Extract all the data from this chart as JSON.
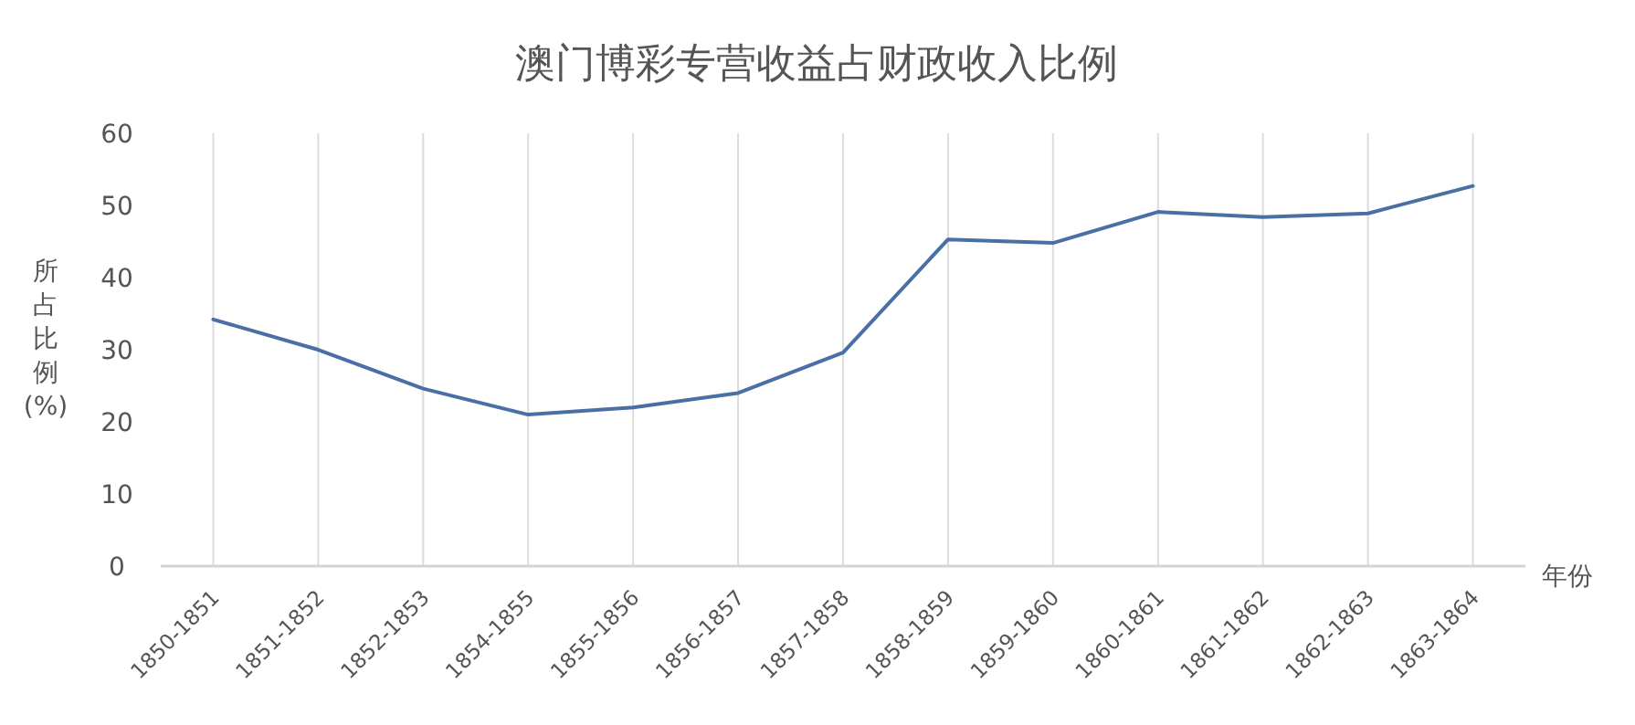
{
  "chart_data": {
    "type": "line",
    "title": "澳门博彩专营收益占财政收入比例",
    "xlabel": "年份",
    "ylabel": "所占比例(%)",
    "categories": [
      "1850-1851",
      "1851-1852",
      "1852-1853",
      "1854-1855",
      "1855-1856",
      "1856-1857",
      "1857-1858",
      "1858-1859",
      "1859-1860",
      "1860-1861",
      "1861-1862",
      "1862-1863",
      "1863-1864"
    ],
    "series": [
      {
        "color": "#4a6fa5",
        "values": [
          34.2,
          30,
          24.6,
          21,
          22,
          24,
          29.6,
          45.3,
          44.8,
          49.1,
          48.4,
          48.9,
          52.7
        ]
      }
    ],
    "ylim": [
      0,
      60
    ],
    "yticks": [
      0,
      10,
      20,
      30,
      40,
      50,
      60
    ],
    "grid": "x",
    "marker": "none",
    "line_style": "solid"
  }
}
